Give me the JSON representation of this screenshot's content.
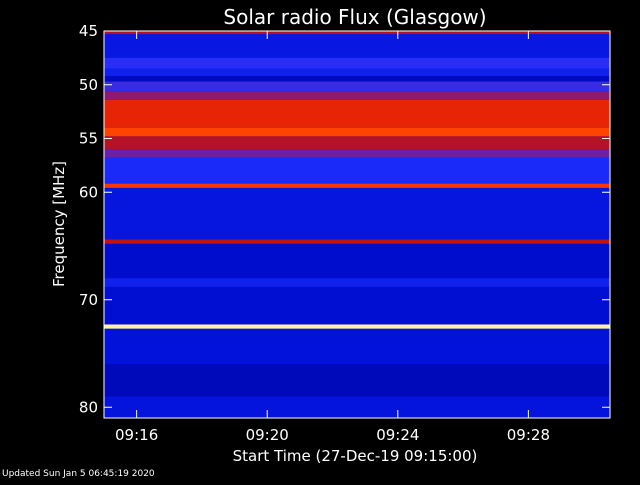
{
  "chart_data": {
    "type": "heatmap",
    "title": "Solar radio Flux (Glasgow)",
    "xlabel": "Start Time (27-Dec-19 09:15:00)",
    "ylabel": "Frequency [MHz]",
    "x_range_minutes": [
      0,
      15.5
    ],
    "x_ticks": [
      {
        "minute": 1,
        "label": "09:16"
      },
      {
        "minute": 5,
        "label": "09:20"
      },
      {
        "minute": 9,
        "label": "09:24"
      },
      {
        "minute": 13,
        "label": "09:28"
      }
    ],
    "y_range_mhz": [
      45,
      81
    ],
    "y_ticks": [
      {
        "mhz": 45,
        "label": "45"
      },
      {
        "mhz": 50,
        "label": "50"
      },
      {
        "mhz": 55,
        "label": "55"
      },
      {
        "mhz": 60,
        "label": "60"
      },
      {
        "mhz": 70,
        "label": "70"
      },
      {
        "mhz": 80,
        "label": "80"
      }
    ],
    "colormap": [
      "#00008a",
      "#0010d8",
      "#2030ff",
      "#7020a0",
      "#c01010",
      "#ff3000",
      "#ffa000",
      "#ffffc0"
    ],
    "bands": [
      {
        "from_mhz": 45.0,
        "to_mhz": 45.3,
        "intensity": 0.55
      },
      {
        "from_mhz": 45.3,
        "to_mhz": 47.5,
        "intensity": 0.18
      },
      {
        "from_mhz": 47.5,
        "to_mhz": 48.5,
        "intensity": 0.3
      },
      {
        "from_mhz": 48.5,
        "to_mhz": 49.2,
        "intensity": 0.22
      },
      {
        "from_mhz": 49.2,
        "to_mhz": 49.7,
        "intensity": 0.1
      },
      {
        "from_mhz": 49.7,
        "to_mhz": 50.6,
        "intensity": 0.33
      },
      {
        "from_mhz": 50.6,
        "to_mhz": 51.4,
        "intensity": 0.48
      },
      {
        "from_mhz": 51.4,
        "to_mhz": 54.0,
        "intensity": 0.66
      },
      {
        "from_mhz": 54.0,
        "to_mhz": 54.8,
        "intensity": 0.74
      },
      {
        "from_mhz": 54.8,
        "to_mhz": 56.0,
        "intensity": 0.55
      },
      {
        "from_mhz": 56.0,
        "to_mhz": 56.8,
        "intensity": 0.42
      },
      {
        "from_mhz": 56.8,
        "to_mhz": 59.2,
        "intensity": 0.26
      },
      {
        "from_mhz": 59.2,
        "to_mhz": 59.6,
        "intensity": 0.72
      },
      {
        "from_mhz": 59.6,
        "to_mhz": 64.4,
        "intensity": 0.17
      },
      {
        "from_mhz": 64.4,
        "to_mhz": 64.8,
        "intensity": 0.58
      },
      {
        "from_mhz": 64.8,
        "to_mhz": 68.0,
        "intensity": 0.12
      },
      {
        "from_mhz": 68.0,
        "to_mhz": 68.8,
        "intensity": 0.22
      },
      {
        "from_mhz": 68.8,
        "to_mhz": 72.3,
        "intensity": 0.13
      },
      {
        "from_mhz": 72.3,
        "to_mhz": 72.7,
        "intensity": 0.98
      },
      {
        "from_mhz": 72.7,
        "to_mhz": 76.0,
        "intensity": 0.15
      },
      {
        "from_mhz": 76.0,
        "to_mhz": 79.0,
        "intensity": 0.09
      },
      {
        "from_mhz": 79.0,
        "to_mhz": 81.0,
        "intensity": 0.16
      }
    ]
  },
  "footer": {
    "updated": "Updated Sun Jan  5 06:45:19 2020"
  }
}
